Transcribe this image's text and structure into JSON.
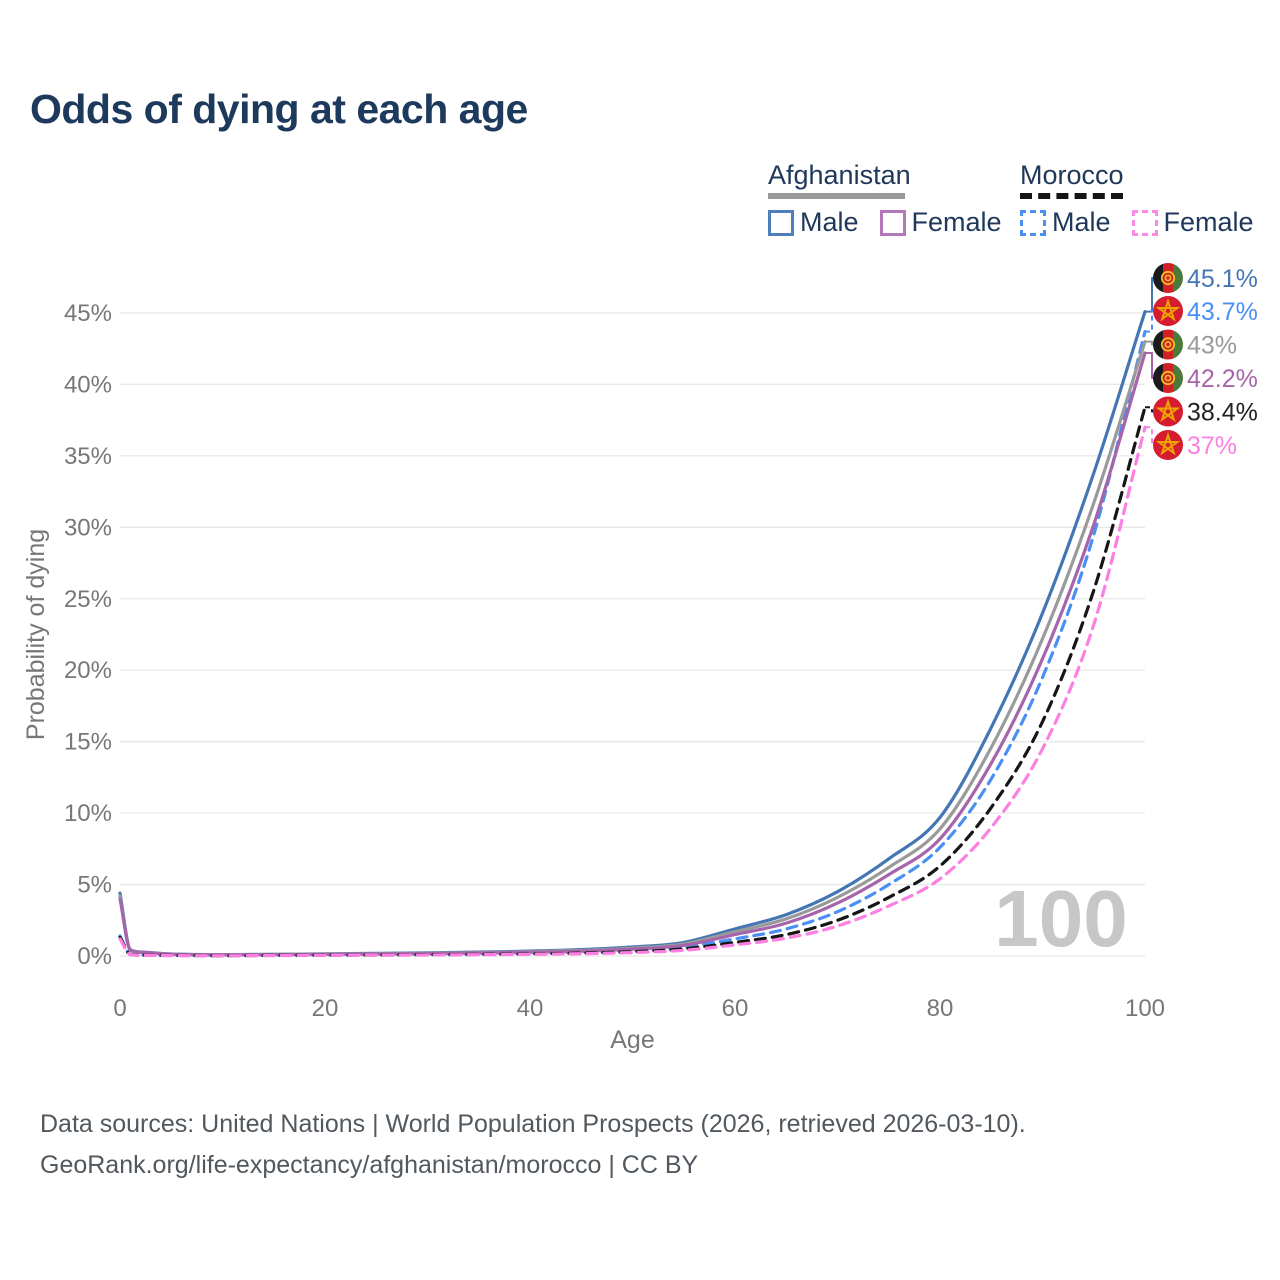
{
  "title": "Odds of dying at each age",
  "legend": {
    "groups": [
      {
        "country": "Afghanistan",
        "line_style": "solid",
        "underline_color": "#9a9a9a",
        "items": [
          {
            "label": "Male",
            "color": "#4f7fbb",
            "dashed": false
          },
          {
            "label": "Female",
            "color": "#b478ba",
            "dashed": false
          }
        ]
      },
      {
        "country": "Morocco",
        "line_style": "dashed",
        "underline_color": "#151515",
        "items": [
          {
            "label": "Male",
            "color": "#4a8ff4",
            "dashed": true
          },
          {
            "label": "Female",
            "color": "#fc8ae4",
            "dashed": true
          }
        ]
      }
    ]
  },
  "watermark_age": "100",
  "footer": {
    "line1": "Data sources: United Nations | World Population Prospects (2026, retrieved 2026-03-10).",
    "line2": "GeoRank.org/life-expectancy/afghanistan/morocco | CC BY"
  },
  "colors": {
    "background": "#ffffff",
    "grid": "#e8e8e8",
    "axis_text": "#777777",
    "title_text": "#1d3a5c",
    "legend_text": "#20395a",
    "footer_text": "#51585e",
    "watermark": "#c7c7c7"
  },
  "flags": {
    "afghanistan": {
      "black": "#1b1b1b",
      "red": "#d32027",
      "green": "#4b7a3a",
      "emblem": "#f3c022"
    },
    "morocco": {
      "red": "#d51c30",
      "star": "#f0a400"
    }
  },
  "chart_data": {
    "type": "line",
    "title": "Odds of dying at each age",
    "xlabel": "Age",
    "ylabel": "Probability of dying",
    "xlim": [
      0,
      100
    ],
    "ylim": [
      0,
      47
    ],
    "x_tick_values": [
      0,
      20,
      40,
      60,
      80,
      100
    ],
    "x_ticks": [
      "0",
      "20",
      "40",
      "60",
      "80",
      "100"
    ],
    "y_tick_values": [
      0,
      5,
      10,
      15,
      20,
      25,
      30,
      35,
      40,
      45
    ],
    "y_ticks": [
      "0%",
      "5%",
      "10%",
      "15%",
      "20%",
      "25%",
      "30%",
      "35%",
      "40%",
      "45%"
    ],
    "grid": true,
    "legend_position": "top-right",
    "unit": "percent",
    "ages": [
      0,
      1,
      2,
      5,
      10,
      15,
      20,
      25,
      30,
      35,
      40,
      45,
      50,
      55,
      60,
      65,
      70,
      75,
      80,
      85,
      90,
      95,
      100
    ],
    "series": [
      {
        "name": "Afghanistan Male",
        "country": "Afghanistan",
        "sex": "Male",
        "flag": "afghanistan",
        "color": "#4476b4",
        "line_style": "solid",
        "end_label": "45.1%",
        "label_color": "#4476b4",
        "end_value": 45.1,
        "values": [
          4.4,
          0.45,
          0.28,
          0.14,
          0.1,
          0.12,
          0.15,
          0.18,
          0.22,
          0.27,
          0.34,
          0.45,
          0.63,
          0.95,
          1.9,
          2.9,
          4.5,
          6.8,
          9.7,
          16.0,
          24.0,
          33.8,
          45.1
        ]
      },
      {
        "name": "Morocco Male",
        "country": "Morocco",
        "sex": "Male",
        "flag": "morocco",
        "color": "#4a8ff4",
        "line_style": "dashed",
        "end_label": "43.7%",
        "label_color": "#4a8ff4",
        "end_value": 43.7,
        "values": [
          1.4,
          0.12,
          0.07,
          0.04,
          0.03,
          0.05,
          0.07,
          0.09,
          0.11,
          0.14,
          0.18,
          0.25,
          0.38,
          0.62,
          1.2,
          1.9,
          3.1,
          5.0,
          7.6,
          12.4,
          19.5,
          29.5,
          43.7
        ]
      },
      {
        "name": "Afghanistan Both sexes",
        "country": "Afghanistan",
        "sex": "Both",
        "flag": "afghanistan",
        "color": "#9a9a9a",
        "line_style": "solid",
        "end_label": "43%",
        "label_color": "#9a9a9a",
        "end_value": 43.0,
        "values": [
          4.2,
          0.43,
          0.26,
          0.13,
          0.09,
          0.11,
          0.13,
          0.16,
          0.19,
          0.23,
          0.29,
          0.39,
          0.55,
          0.85,
          1.7,
          2.6,
          4.1,
          6.2,
          8.9,
          14.6,
          22.2,
          31.7,
          43.0
        ]
      },
      {
        "name": "Afghanistan Female",
        "country": "Afghanistan",
        "sex": "Female",
        "flag": "afghanistan",
        "color": "#a665aa",
        "line_style": "solid",
        "end_label": "42.2%",
        "label_color": "#a665aa",
        "end_value": 42.2,
        "values": [
          4.0,
          0.41,
          0.25,
          0.12,
          0.08,
          0.09,
          0.11,
          0.14,
          0.17,
          0.2,
          0.26,
          0.34,
          0.48,
          0.75,
          1.5,
          2.3,
          3.7,
          5.7,
          8.2,
          13.5,
          20.8,
          30.2,
          42.2
        ]
      },
      {
        "name": "Morocco Both sexes",
        "country": "Morocco",
        "sex": "Both",
        "flag": "morocco",
        "color": "#161616",
        "line_style": "dashed",
        "end_label": "38.4%",
        "label_color": "#222222",
        "end_value": 38.4,
        "values": [
          1.3,
          0.11,
          0.06,
          0.04,
          0.03,
          0.04,
          0.06,
          0.07,
          0.09,
          0.11,
          0.15,
          0.2,
          0.3,
          0.5,
          0.95,
          1.5,
          2.5,
          4.1,
          6.3,
          10.4,
          16.4,
          25.6,
          38.4
        ]
      },
      {
        "name": "Morocco Female",
        "country": "Morocco",
        "sex": "Female",
        "flag": "morocco",
        "color": "#fc7fe1",
        "line_style": "dashed",
        "end_label": "37%",
        "label_color": "#fc7fe1",
        "end_value": 37.0,
        "values": [
          1.2,
          0.1,
          0.05,
          0.03,
          0.02,
          0.03,
          0.05,
          0.06,
          0.07,
          0.09,
          0.12,
          0.16,
          0.24,
          0.4,
          0.78,
          1.25,
          2.1,
          3.5,
          5.4,
          9.0,
          14.5,
          23.2,
          37.0
        ]
      }
    ]
  }
}
